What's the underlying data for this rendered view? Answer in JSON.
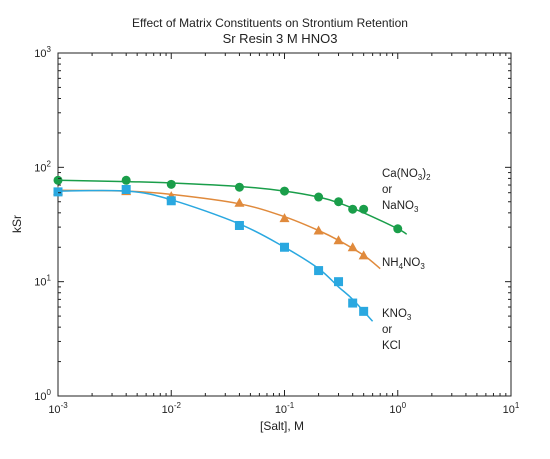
{
  "chart_data": {
    "type": "scatter",
    "title": "Effect of Matrix Constituents on Strontium Retention",
    "subtitle": "Sr Resin 3 M HNO3",
    "xlabel": "[Salt], M",
    "ylabel": "kSr",
    "xscale": "log",
    "yscale": "log",
    "xlim": [
      0.001,
      10
    ],
    "ylim": [
      1,
      1000
    ],
    "x_ticks": [
      0.001,
      0.01,
      0.1,
      1,
      10
    ],
    "y_ticks": [
      1,
      10,
      100,
      1000
    ],
    "x_tick_labels": [
      {
        "base": "10",
        "exp": "-3"
      },
      {
        "base": "10",
        "exp": "-2"
      },
      {
        "base": "10",
        "exp": "-1"
      },
      {
        "base": "10",
        "exp": "0"
      },
      {
        "base": "10",
        "exp": "1"
      }
    ],
    "y_tick_labels": [
      {
        "base": "10",
        "exp": "0"
      },
      {
        "base": "10",
        "exp": "1"
      },
      {
        "base": "10",
        "exp": "2"
      },
      {
        "base": "10",
        "exp": "3"
      }
    ],
    "grid": false,
    "series": [
      {
        "label_lines": [
          "Ca(NO3)2",
          "or",
          "NaNO3"
        ],
        "marker": "circle",
        "color": "#1a9e4a",
        "x": [
          0.001,
          0.004,
          0.01,
          0.04,
          0.1,
          0.2,
          0.3,
          0.4,
          0.5,
          1.0
        ],
        "y": [
          77,
          77,
          71,
          67,
          62,
          55,
          50,
          43,
          43,
          29
        ],
        "fit_x": [
          0.001,
          0.004,
          0.01,
          0.04,
          0.1,
          0.2,
          0.3,
          0.5,
          1.0,
          1.2
        ],
        "fit_y": [
          77,
          75,
          73,
          68,
          62,
          55,
          49,
          40,
          29,
          26
        ]
      },
      {
        "label_lines": [
          "NH4NO3"
        ],
        "marker": "triangle",
        "color": "#e08a3c",
        "x": [
          0.001,
          0.004,
          0.01,
          0.04,
          0.1,
          0.2,
          0.3,
          0.4,
          0.5
        ],
        "y": [
          62,
          62,
          56,
          49,
          36,
          28,
          23,
          20,
          17
        ],
        "fit_x": [
          0.001,
          0.004,
          0.01,
          0.04,
          0.1,
          0.2,
          0.3,
          0.5,
          0.7
        ],
        "fit_y": [
          63,
          62,
          58,
          48,
          37,
          28,
          23,
          17,
          13
        ]
      },
      {
        "label_lines": [
          "KNO3",
          "or",
          "KCl"
        ],
        "marker": "square",
        "color": "#2aa8e0",
        "x": [
          0.001,
          0.004,
          0.01,
          0.04,
          0.1,
          0.2,
          0.3,
          0.4,
          0.5
        ],
        "y": [
          61,
          64,
          51,
          31,
          20,
          12.5,
          10,
          6.5,
          5.5
        ],
        "fit_x": [
          0.001,
          0.004,
          0.01,
          0.04,
          0.1,
          0.2,
          0.3,
          0.4,
          0.6
        ],
        "fit_y": [
          62,
          62,
          52,
          32,
          20,
          13,
          9,
          7,
          4.5
        ]
      }
    ]
  }
}
